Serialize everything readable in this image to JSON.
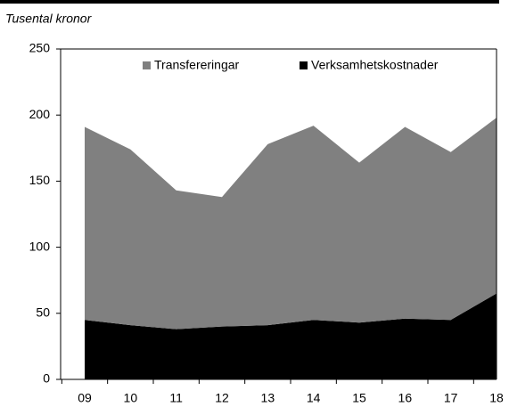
{
  "chart_data": {
    "type": "stacked-area",
    "subtitle": "Tusental kronor",
    "categories": [
      "09",
      "10",
      "11",
      "12",
      "13",
      "14",
      "15",
      "16",
      "17",
      "18"
    ],
    "series": [
      {
        "name": "Transfereringar",
        "color": "#808080",
        "values": [
          146,
          133,
          105,
          98,
          137,
          147,
          121,
          145,
          127,
          133
        ]
      },
      {
        "name": "Verksamhetskostnader",
        "color": "#000000",
        "values": [
          45,
          41,
          38,
          40,
          41,
          45,
          43,
          46,
          45,
          65
        ]
      }
    ],
    "ylim": [
      0,
      250
    ],
    "yticks": [
      0,
      50,
      100,
      150,
      200,
      250
    ],
    "legend": "top"
  }
}
